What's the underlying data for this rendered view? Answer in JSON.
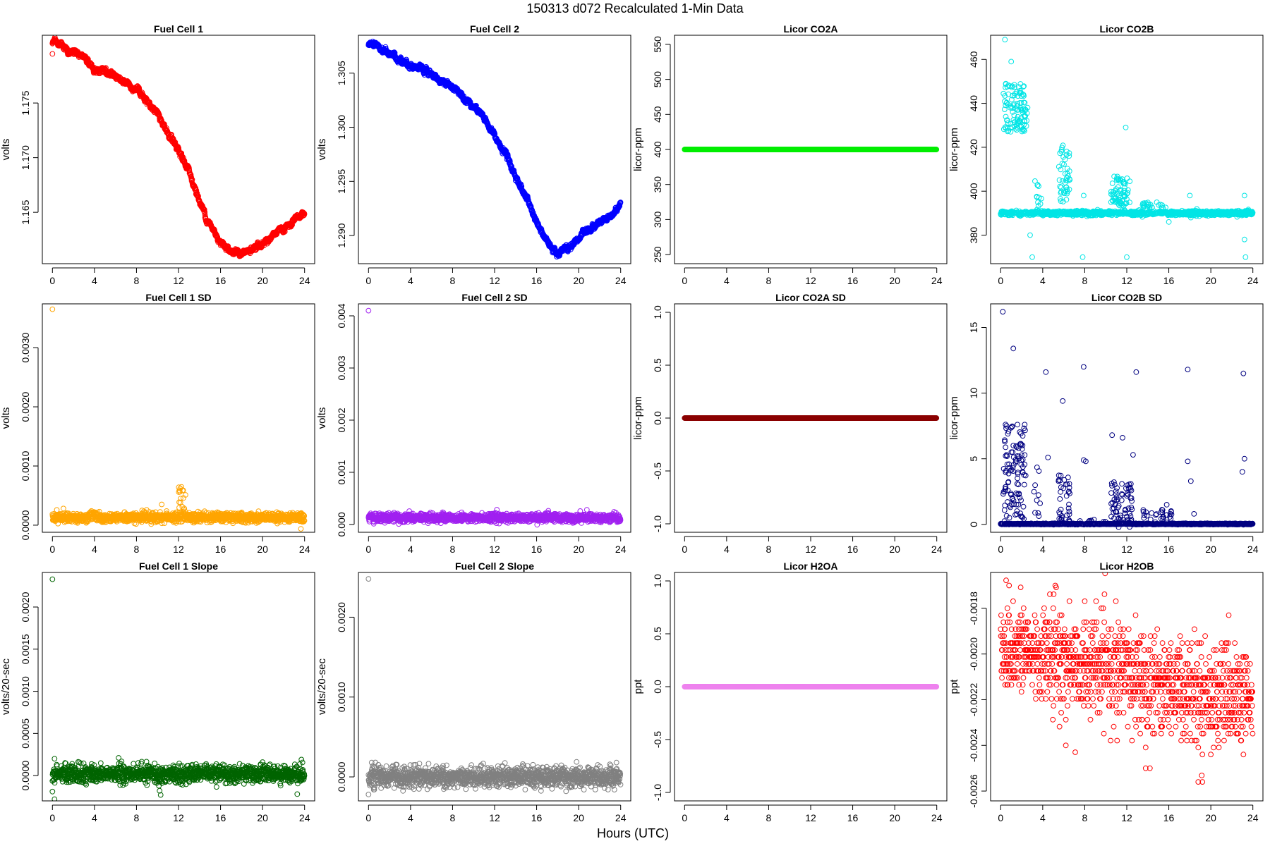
{
  "figure": {
    "title": "150313   d072   Recalculated 1-Min Data",
    "xlabel": "Hours (UTC)"
  },
  "chart_data": [
    {
      "id": "fc1",
      "type": "scatter",
      "title": "Fuel Cell 1",
      "ylabel": "volts",
      "color": "#ff0000",
      "xlim": [
        0,
        24
      ],
      "xticks": [
        0,
        4,
        8,
        12,
        16,
        20,
        24
      ],
      "ylim": [
        1.1603,
        1.1812
      ],
      "yticks": [
        1.165,
        1.17,
        1.175
      ],
      "ytick_labels": [
        "1.165",
        "1.170",
        "1.175"
      ],
      "gen": "path",
      "path": [
        [
          0,
          1.1805
        ],
        [
          1,
          1.1802
        ],
        [
          2,
          1.1795
        ],
        [
          3,
          1.1792
        ],
        [
          4,
          1.1783
        ],
        [
          5,
          1.1778
        ],
        [
          6,
          1.1775
        ],
        [
          7,
          1.177
        ],
        [
          8,
          1.1762
        ],
        [
          9,
          1.1753
        ],
        [
          10,
          1.174
        ],
        [
          11,
          1.1722
        ],
        [
          12,
          1.1704
        ],
        [
          13,
          1.1688
        ],
        [
          14,
          1.166
        ],
        [
          15,
          1.1638
        ],
        [
          16,
          1.1624
        ],
        [
          17,
          1.1615
        ],
        [
          18,
          1.1612
        ],
        [
          19,
          1.1615
        ],
        [
          20,
          1.1622
        ],
        [
          21,
          1.1628
        ],
        [
          22,
          1.1635
        ],
        [
          23,
          1.164
        ],
        [
          24,
          1.165
        ]
      ],
      "noise": 0.0002,
      "outliers": [
        [
          0,
          1.1795
        ]
      ]
    },
    {
      "id": "fc2",
      "type": "scatter",
      "title": "Fuel Cell 2",
      "ylabel": "volts",
      "color": "#0000ff",
      "xlim": [
        0,
        24
      ],
      "xticks": [
        0,
        4,
        8,
        12,
        16,
        20,
        24
      ],
      "ylim": [
        1.2874,
        1.3085
      ],
      "yticks": [
        1.29,
        1.295,
        1.3,
        1.305
      ],
      "ytick_labels": [
        "1.290",
        "1.295",
        "1.300",
        "1.305"
      ],
      "gen": "path",
      "path": [
        [
          0,
          1.3077
        ],
        [
          1,
          1.3073
        ],
        [
          2,
          1.3068
        ],
        [
          3,
          1.3063
        ],
        [
          4,
          1.3058
        ],
        [
          5,
          1.3053
        ],
        [
          6,
          1.3048
        ],
        [
          7,
          1.3043
        ],
        [
          8,
          1.3037
        ],
        [
          9,
          1.303
        ],
        [
          10,
          1.302
        ],
        [
          11,
          1.3008
        ],
        [
          12,
          1.2992
        ],
        [
          13,
          1.2975
        ],
        [
          14,
          1.2955
        ],
        [
          15,
          1.2935
        ],
        [
          16,
          1.2912
        ],
        [
          17,
          1.2893
        ],
        [
          18,
          1.2885
        ],
        [
          19,
          1.2888
        ],
        [
          20,
          1.2897
        ],
        [
          21,
          1.2905
        ],
        [
          22,
          1.2913
        ],
        [
          23,
          1.2917
        ],
        [
          24,
          1.293
        ]
      ],
      "noise": 0.0002,
      "outliers": []
    },
    {
      "id": "co2a",
      "type": "scatter",
      "title": "Licor CO2A",
      "ylabel": "licor-ppm",
      "color": "#00ee00",
      "xlim": [
        0,
        24
      ],
      "xticks": [
        0,
        4,
        8,
        12,
        16,
        20,
        24
      ],
      "ylim": [
        237,
        563
      ],
      "yticks": [
        250,
        300,
        350,
        400,
        450,
        500,
        550
      ],
      "ytick_labels": [
        "250",
        "300",
        "350",
        "400",
        "450",
        "500",
        "550"
      ],
      "gen": "const",
      "level": 400,
      "noise": 0,
      "outliers": []
    },
    {
      "id": "co2b",
      "type": "scatter",
      "title": "Licor CO2B",
      "ylabel": "licor-ppm",
      "color": "#00e5e5",
      "xlim": [
        0,
        24
      ],
      "xticks": [
        0,
        4,
        8,
        12,
        16,
        20,
        24
      ],
      "ylim": [
        367,
        471
      ],
      "yticks": [
        380,
        400,
        420,
        440,
        460
      ],
      "ytick_labels": [
        "380",
        "400",
        "420",
        "440",
        "460"
      ],
      "gen": "baseline",
      "level": 390,
      "noise": 0.5,
      "clusters": [
        {
          "x0": 0.2,
          "x1": 2.6,
          "mid": 438,
          "spread": 22,
          "n": 110
        },
        {
          "x0": 3.0,
          "x1": 3.9,
          "mid": 398,
          "spread": 18,
          "n": 12
        },
        {
          "x0": 5.5,
          "x1": 6.6,
          "mid": 408,
          "spread": 26,
          "n": 45
        },
        {
          "x0": 10.5,
          "x1": 12.3,
          "mid": 400,
          "spread": 14,
          "n": 70
        },
        {
          "x0": 13.5,
          "x1": 15.8,
          "mid": 393,
          "spread": 4,
          "n": 25
        }
      ],
      "outliers": [
        [
          0.4,
          469
        ],
        [
          1.0,
          459
        ],
        [
          11.9,
          429
        ],
        [
          3.0,
          370
        ],
        [
          7.8,
          370
        ],
        [
          7.9,
          398
        ],
        [
          11.8,
          398
        ],
        [
          18.0,
          398
        ],
        [
          18.1,
          388
        ],
        [
          23.2,
          398
        ],
        [
          23.3,
          370
        ],
        [
          23.2,
          378
        ],
        [
          12.0,
          370
        ],
        [
          16.0,
          386
        ],
        [
          2.8,
          380
        ]
      ]
    },
    {
      "id": "fc1sd",
      "type": "scatter",
      "title": "Fuel Cell 1 SD",
      "ylabel": "volts",
      "color": "#ffa500",
      "xlim": [
        0,
        24
      ],
      "xticks": [
        0,
        4,
        8,
        12,
        16,
        20,
        24
      ],
      "ylim": [
        -0.00012,
        0.00374
      ],
      "yticks": [
        0.0,
        0.001,
        0.002,
        0.003
      ],
      "ytick_labels": [
        "0.0000",
        "0.0010",
        "0.0020",
        "0.0030"
      ],
      "gen": "baseline",
      "level": 0.00013,
      "noise": 4e-05,
      "clusters": [
        {
          "x0": 12.0,
          "x1": 12.7,
          "mid": 0.00035,
          "spread": 0.0006,
          "n": 25
        },
        {
          "x0": 3.5,
          "x1": 4.5,
          "mid": 0.0002,
          "spread": 0.0001,
          "n": 12
        }
      ],
      "outliers": [
        [
          0,
          0.00365
        ],
        [
          10.4,
          0.00035
        ]
      ]
    },
    {
      "id": "fc2sd",
      "type": "scatter",
      "title": "Fuel Cell 2 SD",
      "ylabel": "volts",
      "color": "#a020f0",
      "xlim": [
        0,
        24
      ],
      "xticks": [
        0,
        4,
        8,
        12,
        16,
        20,
        24
      ],
      "ylim": [
        -0.00015,
        0.00423
      ],
      "yticks": [
        0.0,
        0.001,
        0.002,
        0.003,
        0.004
      ],
      "ytick_labels": [
        "0.000",
        "0.001",
        "0.002",
        "0.003",
        "0.004"
      ],
      "gen": "baseline",
      "level": 0.00013,
      "noise": 4e-05,
      "clusters": [],
      "outliers": [
        [
          0,
          0.0041
        ]
      ]
    },
    {
      "id": "co2asd",
      "type": "scatter",
      "title": "Licor CO2A SD",
      "ylabel": "licor-ppm",
      "color": "#8b0000",
      "xlim": [
        0,
        24
      ],
      "xticks": [
        0,
        4,
        8,
        12,
        16,
        20,
        24
      ],
      "ylim": [
        -1.08,
        1.08
      ],
      "yticks": [
        -1.0,
        -0.5,
        0.0,
        0.5,
        1.0
      ],
      "ytick_labels": [
        "-1.0",
        "-0.5",
        "0.0",
        "0.5",
        "1.0"
      ],
      "gen": "const",
      "level": 0,
      "noise": 0,
      "outliers": []
    },
    {
      "id": "co2bsd",
      "type": "scatter",
      "title": "Licor CO2B SD",
      "ylabel": "licor-ppm",
      "color": "#000080",
      "xlim": [
        0,
        24
      ],
      "xticks": [
        0,
        4,
        8,
        12,
        16,
        20,
        24
      ],
      "ylim": [
        -0.6,
        16.8
      ],
      "yticks": [
        0,
        5,
        10,
        15
      ],
      "ytick_labels": [
        "0",
        "5",
        "10",
        "15"
      ],
      "gen": "baseline",
      "level": 0.03,
      "noise": 0.02,
      "clusters": [
        {
          "x0": 0.2,
          "x1": 2.4,
          "mid": 4.0,
          "spread": 7.5,
          "n": 110
        },
        {
          "x0": 3.0,
          "x1": 3.8,
          "mid": 2.5,
          "spread": 4.0,
          "n": 10
        },
        {
          "x0": 5.5,
          "x1": 6.6,
          "mid": 2.0,
          "spread": 4.0,
          "n": 40
        },
        {
          "x0": 10.5,
          "x1": 12.5,
          "mid": 1.5,
          "spread": 3.5,
          "n": 70
        },
        {
          "x0": 13.5,
          "x1": 16.3,
          "mid": 0.6,
          "spread": 1.2,
          "n": 30
        },
        {
          "x0": 7.5,
          "x1": 10.0,
          "mid": 0.2,
          "spread": 0.4,
          "n": 15
        }
      ],
      "outliers": [
        [
          0.2,
          16.2
        ],
        [
          1.2,
          13.4
        ],
        [
          4.3,
          11.6
        ],
        [
          7.9,
          12.0
        ],
        [
          12.9,
          11.6
        ],
        [
          17.8,
          11.8
        ],
        [
          23.1,
          11.5
        ],
        [
          5.9,
          9.4
        ],
        [
          10.6,
          6.8
        ],
        [
          11.6,
          6.6
        ],
        [
          12.6,
          5.3
        ],
        [
          7.9,
          4.9
        ],
        [
          8.1,
          4.8
        ],
        [
          18.1,
          3.3
        ],
        [
          17.8,
          4.8
        ],
        [
          23.2,
          5.0
        ],
        [
          23.0,
          4.0
        ],
        [
          15.8,
          1.5
        ],
        [
          18.4,
          0.8
        ],
        [
          4.5,
          5.1
        ]
      ]
    },
    {
      "id": "fc1slope",
      "type": "scatter",
      "title": "Fuel Cell 1 Slope",
      "ylabel": "volts/20-sec",
      "color": "#006400",
      "xlim": [
        0,
        24
      ],
      "xticks": [
        0,
        4,
        8,
        12,
        16,
        20,
        24
      ],
      "ylim": [
        -0.0003,
        0.00241
      ],
      "yticks": [
        0.0,
        0.0005,
        0.001,
        0.0015,
        0.002
      ],
      "ytick_labels": [
        "0.0000",
        "0.0005",
        "0.0010",
        "0.0015",
        "0.0020"
      ],
      "gen": "baseline",
      "level": 2e-05,
      "noise": 5e-05,
      "clusters": [],
      "outliers": [
        [
          0,
          0.00233
        ],
        [
          0.2,
          -0.00028
        ],
        [
          0,
          -0.00019
        ],
        [
          0.2,
          0.0002
        ],
        [
          6.3,
          0.00021
        ],
        [
          10.3,
          -0.00023
        ],
        [
          10.2,
          -0.00018
        ],
        [
          20.0,
          0.00016
        ],
        [
          23.3,
          -0.00022
        ],
        [
          23.7,
          0.00019
        ],
        [
          1.2,
          0.00015
        ]
      ]
    },
    {
      "id": "fc2slope",
      "type": "scatter",
      "title": "Fuel Cell 2 Slope",
      "ylabel": "volts/20-sec",
      "color": "#808080",
      "xlim": [
        0,
        24
      ],
      "xticks": [
        0,
        4,
        8,
        12,
        16,
        20,
        24
      ],
      "ylim": [
        -0.0003,
        0.00256
      ],
      "yticks": [
        0.0,
        0.001,
        0.002
      ],
      "ytick_labels": [
        "0.0000",
        "0.0010",
        "0.0020"
      ],
      "gen": "baseline",
      "level": 0.0,
      "noise": 6e-05,
      "clusters": [],
      "outliers": [
        [
          0,
          0.00248
        ],
        [
          0,
          -0.00022
        ],
        [
          0.3,
          0.00018
        ],
        [
          0.5,
          -0.00016
        ],
        [
          1.2,
          -0.00014
        ],
        [
          20.5,
          -0.00016
        ],
        [
          23.4,
          -0.00016
        ],
        [
          23.6,
          0.00018
        ]
      ]
    },
    {
      "id": "h2oa",
      "type": "scatter",
      "title": "Licor H2OA",
      "ylabel": "ppt",
      "color": "#ee82ee",
      "xlim": [
        0,
        24
      ],
      "xticks": [
        0,
        4,
        8,
        12,
        16,
        20,
        24
      ],
      "ylim": [
        -1.08,
        1.08
      ],
      "yticks": [
        -1.0,
        -0.5,
        0.0,
        0.5,
        1.0
      ],
      "ytick_labels": [
        "-1.0",
        "-0.5",
        "0.0",
        "0.5",
        "1.0"
      ],
      "gen": "const",
      "level": 0,
      "noise": 0,
      "outliers": []
    },
    {
      "id": "h2ob",
      "type": "scatter",
      "title": "Licor H2OB",
      "ylabel": "ppt",
      "color": "#ff0000",
      "xlim": [
        0,
        24
      ],
      "xticks": [
        0,
        4,
        8,
        12,
        16,
        20,
        24
      ],
      "ylim": [
        -0.002643,
        -0.001643
      ],
      "yticks": [
        -0.0026,
        -0.0024,
        -0.0022,
        -0.002,
        -0.0018
      ],
      "ytick_labels": [
        "-0.0026",
        "-0.0024",
        "-0.0022",
        "-0.0020",
        "-0.0018"
      ],
      "gen": "quantized",
      "start": -0.00196,
      "end": -0.00222,
      "spread": 0.00024,
      "step": 3.05e-05,
      "n": 1200,
      "outliers": [
        [
          0.8,
          -0.0017
        ],
        [
          5.2,
          -0.0017
        ],
        [
          18.8,
          -0.00256
        ],
        [
          19.2,
          -0.00256
        ],
        [
          6.2,
          -0.0024
        ],
        [
          7.1,
          -0.00243
        ],
        [
          13.8,
          -0.0025
        ],
        [
          14.2,
          -0.0025
        ]
      ]
    }
  ]
}
